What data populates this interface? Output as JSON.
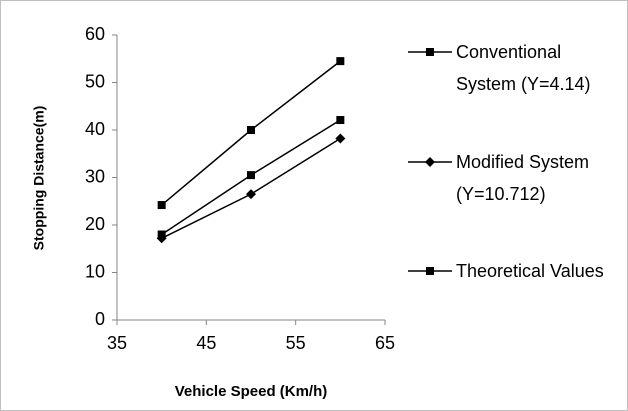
{
  "chart_data": {
    "type": "line",
    "x_label": "Vehicle Speed (Km/h)",
    "y_label": "Stopping Distance(m)",
    "x": [
      40,
      50,
      60
    ],
    "series": [
      {
        "name": "Conventional System (Y=4.14)",
        "color": "#000000",
        "marker": "square",
        "values": [
          24.2,
          40,
          54.5
        ]
      },
      {
        "name": "Modified System (Y=10.712)",
        "color": "#000000",
        "marker": "diamond",
        "values": [
          17.2,
          26.5,
          38.2
        ]
      },
      {
        "name": "Theoretical Values",
        "color": "#000000",
        "marker": "square",
        "values": [
          18,
          30.5,
          42.1
        ]
      }
    ],
    "xlim": [
      35,
      65
    ],
    "xticks": [
      35,
      45,
      55,
      65
    ],
    "ylim": [
      0,
      60
    ],
    "yticks": [
      0,
      10,
      20,
      30,
      40,
      50,
      60
    ],
    "grid": false,
    "legend": "right"
  }
}
